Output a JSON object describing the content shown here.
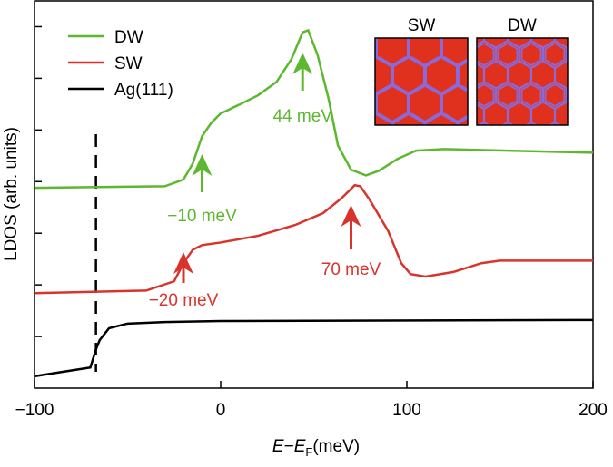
{
  "chart_data": {
    "type": "line",
    "x_label": [
      "E",
      "−",
      "E",
      "F",
      "(meV)"
    ],
    "y_label": "LDOS (arb. units)",
    "xlim": [
      -100,
      200
    ],
    "xticks": [
      {
        "value": -100,
        "label": "−100"
      },
      0,
      100,
      200
    ],
    "ylim": [
      0,
      7.5
    ],
    "yticks": [
      1,
      2,
      3,
      4,
      5,
      6,
      7
    ],
    "legend": "upper left",
    "series": [
      {
        "name": "DW",
        "color": "#5cb82e",
        "x": [
          -100,
          -30,
          -20,
          -15,
          -10,
          -5,
          0,
          10,
          20,
          30,
          38,
          44,
          47,
          52,
          58,
          63,
          70,
          78,
          85,
          95,
          105,
          120,
          200
        ],
        "values": [
          3.88,
          3.91,
          4.04,
          4.35,
          4.88,
          5.14,
          5.32,
          5.49,
          5.67,
          5.93,
          6.37,
          6.89,
          6.93,
          6.46,
          5.6,
          4.7,
          4.23,
          4.12,
          4.21,
          4.44,
          4.6,
          4.63,
          4.56
        ]
      },
      {
        "name": "SW",
        "color": "#d9342b",
        "x": [
          -100,
          -40,
          -25,
          -20,
          -15,
          -10,
          0,
          20,
          40,
          55,
          65,
          72,
          75,
          80,
          90,
          97,
          102,
          110,
          125,
          140,
          150,
          200
        ],
        "values": [
          1.84,
          1.89,
          2.07,
          2.42,
          2.68,
          2.77,
          2.82,
          2.95,
          3.16,
          3.39,
          3.68,
          3.93,
          3.91,
          3.65,
          3.04,
          2.42,
          2.21,
          2.16,
          2.25,
          2.42,
          2.47,
          2.47
        ]
      },
      {
        "name": "Ag(111)",
        "color": "#000000",
        "x": [
          -100,
          -70,
          -67,
          -65,
          -60,
          -50,
          -30,
          0,
          200
        ],
        "values": [
          0.23,
          0.4,
          0.75,
          0.93,
          1.16,
          1.25,
          1.28,
          1.3,
          1.32
        ]
      }
    ],
    "vline": -67,
    "annotations": [
      {
        "text": "44 meV",
        "x": 44,
        "color": "#5cb82e"
      },
      {
        "text": "−10 meV",
        "x": -10,
        "color": "#5cb82e"
      },
      {
        "text": "−20 meV",
        "x": -20,
        "color": "#d9342b"
      },
      {
        "text": "70 meV",
        "x": 70,
        "color": "#d9342b"
      }
    ],
    "inset": {
      "labels": [
        "SW",
        "DW"
      ]
    }
  }
}
